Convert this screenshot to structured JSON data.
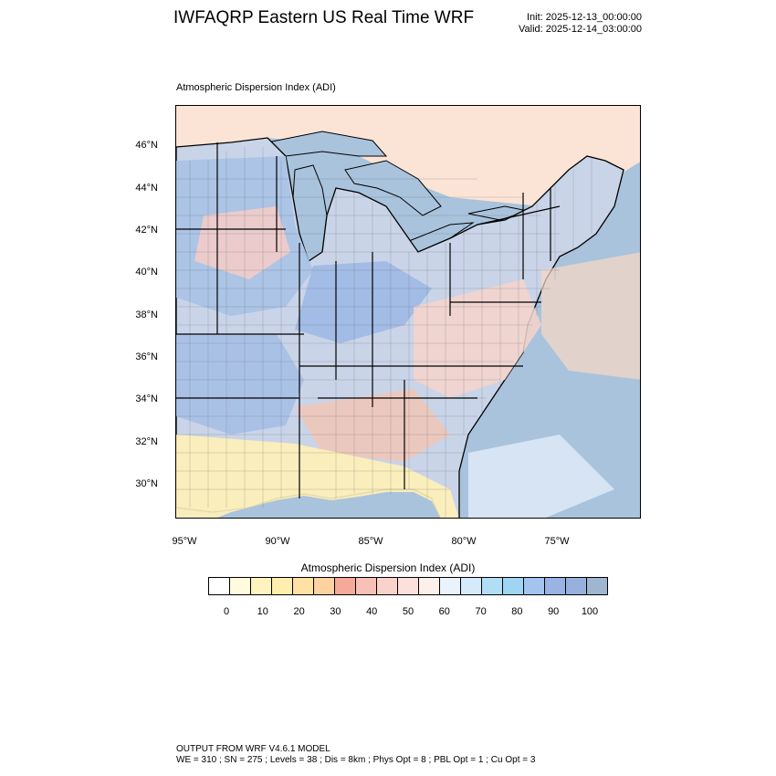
{
  "title": "IWFAQRP Eastern US Real Time WRF",
  "init_text": "Init: 2025-12-13_00:00:00",
  "valid_text": "Valid: 2025-12-14_03:00:00",
  "field_label": "Atmospheric Dispersion Index   (ADI)",
  "lat_ticks": [
    "46°N",
    "44°N",
    "42°N",
    "40°N",
    "38°N",
    "36°N",
    "34°N",
    "32°N",
    "30°N"
  ],
  "lon_ticks": [
    "95°W",
    "90°W",
    "85°W",
    "80°W",
    "75°W"
  ],
  "colorbar": {
    "title": "Atmospheric Dispersion Index  (ADI)",
    "colors": [
      "#ffffff",
      "#fffbdc",
      "#fff4c0",
      "#ffeeae",
      "#ffe2a2",
      "#fdd1a0",
      "#f7a999",
      "#f8c1b6",
      "#f9d3cb",
      "#fbe0db",
      "#fdefea",
      "#eaf2fc",
      "#d5eafa",
      "#b2def5",
      "#9fd5f3",
      "#a3c4ef",
      "#98b3e4",
      "#97b1dc",
      "#9fb6d0"
    ],
    "labels": [
      "0",
      "10",
      "20",
      "30",
      "40",
      "50",
      "60",
      "70",
      "80",
      "90",
      "100"
    ]
  },
  "footer_line1": "OUTPUT FROM WRF V4.6.1 MODEL",
  "footer_line2": "WE = 310 ; SN = 275 ; Levels = 38 ; Dis = 8km ; Phys Opt = 8 ; PBL Opt = 1 ; Cu Opt = 3"
}
